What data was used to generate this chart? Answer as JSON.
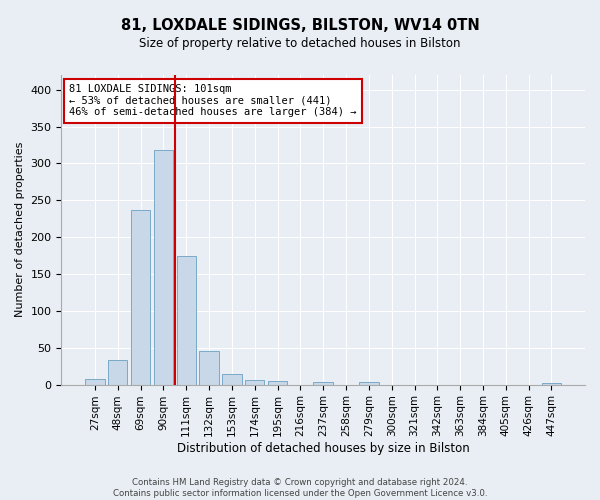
{
  "title_line1": "81, LOXDALE SIDINGS, BILSTON, WV14 0TN",
  "title_line2": "Size of property relative to detached houses in Bilston",
  "xlabel": "Distribution of detached houses by size in Bilston",
  "ylabel": "Number of detached properties",
  "footnote": "Contains HM Land Registry data © Crown copyright and database right 2024.\nContains public sector information licensed under the Open Government Licence v3.0.",
  "bar_labels": [
    "27sqm",
    "48sqm",
    "69sqm",
    "90sqm",
    "111sqm",
    "132sqm",
    "153sqm",
    "174sqm",
    "195sqm",
    "216sqm",
    "237sqm",
    "258sqm",
    "279sqm",
    "300sqm",
    "321sqm",
    "342sqm",
    "363sqm",
    "384sqm",
    "405sqm",
    "426sqm",
    "447sqm"
  ],
  "bar_values": [
    8,
    33,
    237,
    318,
    175,
    46,
    15,
    6,
    5,
    0,
    4,
    0,
    3,
    0,
    0,
    0,
    0,
    0,
    0,
    0,
    2
  ],
  "bar_color": "#c8d8e8",
  "bar_edge_color": "#7aaac8",
  "background_color": "#e8eef4",
  "grid_color": "#ffffff",
  "vline_x": 3.5,
  "vline_color": "#cc0000",
  "annotation_text": "81 LOXDALE SIDINGS: 101sqm\n← 53% of detached houses are smaller (441)\n46% of semi-detached houses are larger (384) →",
  "annotation_box_color": "#ffffff",
  "annotation_box_edge": "#cc0000",
  "ylim": [
    0,
    420
  ],
  "yticks": [
    0,
    50,
    100,
    150,
    200,
    250,
    300,
    350,
    400
  ]
}
